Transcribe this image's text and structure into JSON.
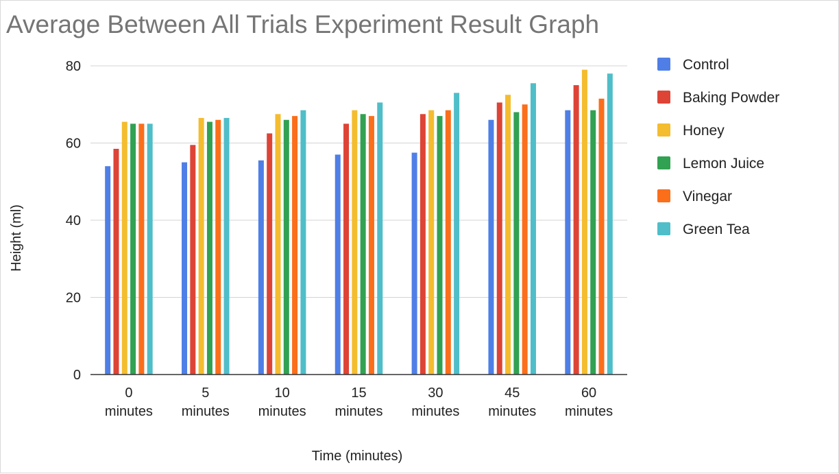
{
  "chart_data": {
    "type": "bar",
    "title": "Average Between All Trials Experiment Result Graph",
    "xlabel": "Time (minutes)",
    "ylabel": "Height (ml)",
    "ylim": [
      0,
      80
    ],
    "yticks": [
      0,
      20,
      40,
      60,
      80
    ],
    "grid": true,
    "legend_position": "right",
    "categories": [
      [
        "0",
        "minutes"
      ],
      [
        "5",
        "minutes"
      ],
      [
        "10",
        "minutes"
      ],
      [
        "15",
        "minutes"
      ],
      [
        "30",
        "minutes"
      ],
      [
        "45",
        "minutes"
      ],
      [
        "60",
        "minutes"
      ]
    ],
    "series": [
      {
        "name": "Control",
        "color": "#4f7fe6",
        "values": [
          54,
          55,
          55.5,
          57,
          57.5,
          66,
          68.5
        ]
      },
      {
        "name": "Baking Powder",
        "color": "#dd4436",
        "values": [
          58.5,
          59.5,
          62.5,
          65,
          67.5,
          70.5,
          75
        ]
      },
      {
        "name": "Honey",
        "color": "#f4bc2f",
        "values": [
          65.5,
          66.5,
          67.5,
          68.5,
          68.5,
          72.5,
          79
        ]
      },
      {
        "name": "Lemon Juice",
        "color": "#31a152",
        "values": [
          65,
          65.5,
          66,
          67.5,
          67,
          68,
          68.5
        ]
      },
      {
        "name": "Vinegar",
        "color": "#fb6e1a",
        "values": [
          65,
          66,
          67,
          67,
          68.5,
          70,
          71.5
        ]
      },
      {
        "name": "Green Tea",
        "color": "#4fbec8",
        "values": [
          65,
          66.5,
          68.5,
          70.5,
          73,
          75.5,
          78
        ]
      }
    ]
  }
}
